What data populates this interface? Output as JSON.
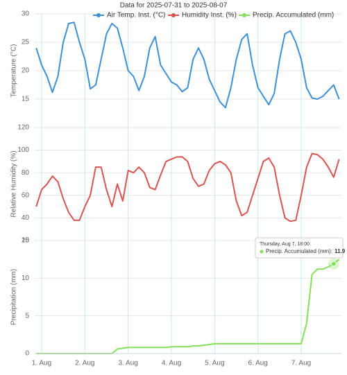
{
  "chart_data": [
    {
      "type": "line",
      "title": "Data for 2025-07-31 to 2025-08-07",
      "ylabel": "Temperature (°C)",
      "xlim": [
        0.84,
        7.93
      ],
      "xticks": [
        1,
        2,
        3,
        4,
        5,
        6,
        7
      ],
      "ylim": [
        10,
        30
      ],
      "yticks": [
        15,
        20,
        25,
        30
      ],
      "grid": true,
      "x": [
        0.875,
        1,
        1.125,
        1.25,
        1.375,
        1.5,
        1.625,
        1.75,
        1.875,
        2,
        2.125,
        2.25,
        2.375,
        2.5,
        2.625,
        2.75,
        2.875,
        3,
        3.125,
        3.25,
        3.375,
        3.5,
        3.625,
        3.75,
        3.875,
        4,
        4.125,
        4.25,
        4.375,
        4.5,
        4.625,
        4.75,
        4.875,
        5,
        5.125,
        5.25,
        5.375,
        5.5,
        5.625,
        5.75,
        5.875,
        6,
        6.125,
        6.25,
        6.375,
        6.5,
        6.625,
        6.75,
        6.875,
        7,
        7.125,
        7.25,
        7.375,
        7.5,
        7.625,
        7.75,
        7.875
      ],
      "series": [
        {
          "name": "Air Temp. Inst. (°C)",
          "color": "#3d8fd6",
          "values": [
            24,
            21,
            19,
            16.2,
            19,
            25,
            28.3,
            28.5,
            25,
            22,
            16.8,
            17.5,
            22,
            26.5,
            28.3,
            27.5,
            24,
            20,
            19,
            16.5,
            19,
            24,
            26,
            21,
            19.5,
            18,
            17.5,
            16.3,
            17,
            22,
            24,
            22,
            18.5,
            16.5,
            14.5,
            13.5,
            17,
            22,
            25.5,
            26.5,
            21,
            17,
            15.5,
            14,
            16,
            22,
            26.5,
            27,
            25,
            22,
            17,
            15.2,
            15,
            15.5,
            16.5,
            17.5,
            15
          ]
        }
      ]
    },
    {
      "type": "line",
      "ylabel": "Relative Humidity (%)",
      "xlim": [
        0.84,
        7.93
      ],
      "xticks": [
        1,
        2,
        3,
        4,
        5,
        6,
        7
      ],
      "ylim": [
        20,
        120
      ],
      "yticks": [
        20,
        40,
        60,
        80,
        100,
        120
      ],
      "grid": true,
      "x": [
        0.875,
        1,
        1.125,
        1.25,
        1.375,
        1.5,
        1.625,
        1.75,
        1.875,
        2,
        2.125,
        2.25,
        2.375,
        2.5,
        2.625,
        2.75,
        2.875,
        3,
        3.125,
        3.25,
        3.375,
        3.5,
        3.625,
        3.75,
        3.875,
        4,
        4.125,
        4.25,
        4.375,
        4.5,
        4.625,
        4.75,
        4.875,
        5,
        5.125,
        5.25,
        5.375,
        5.5,
        5.625,
        5.75,
        5.875,
        6,
        6.125,
        6.25,
        6.375,
        6.5,
        6.625,
        6.75,
        6.875,
        7,
        7.125,
        7.25,
        7.375,
        7.5,
        7.625,
        7.75,
        7.875
      ],
      "series": [
        {
          "name": "Humidity Inst. (%)",
          "color": "#d9534f",
          "values": [
            50,
            65,
            70,
            77,
            72,
            57,
            45,
            38,
            38,
            50,
            60,
            85,
            85,
            65,
            50,
            70,
            55,
            82,
            80,
            85,
            80,
            67,
            65,
            78,
            90,
            92,
            94,
            94,
            90,
            75,
            68,
            70,
            82,
            88,
            90,
            87,
            80,
            55,
            42,
            45,
            60,
            75,
            90,
            93,
            85,
            60,
            40,
            37,
            38,
            60,
            85,
            97,
            96,
            92,
            85,
            76,
            92
          ]
        }
      ]
    },
    {
      "type": "line",
      "ylabel": "Precipitation (mm)",
      "xlim": [
        0.84,
        7.93
      ],
      "xticks": [
        {
          "value": 1,
          "label": "1. Aug"
        },
        {
          "value": 2,
          "label": "2. Aug"
        },
        {
          "value": 3,
          "label": "3. Aug"
        },
        {
          "value": 4,
          "label": "4. Aug"
        },
        {
          "value": 5,
          "label": "5. Aug"
        },
        {
          "value": 6,
          "label": "6. Aug"
        },
        {
          "value": 7,
          "label": "7. Aug"
        }
      ],
      "ylim": [
        0,
        15
      ],
      "yticks": [
        0,
        5,
        10,
        15
      ],
      "grid": true,
      "x": [
        0.875,
        1,
        1.125,
        1.25,
        1.375,
        1.5,
        1.625,
        1.75,
        1.875,
        2,
        2.125,
        2.25,
        2.375,
        2.5,
        2.625,
        2.75,
        2.875,
        3,
        3.125,
        3.25,
        3.375,
        3.5,
        3.625,
        3.75,
        3.875,
        4,
        4.125,
        4.25,
        4.375,
        4.5,
        4.625,
        4.75,
        4.875,
        5,
        5.125,
        5.25,
        5.375,
        5.5,
        5.625,
        5.75,
        5.875,
        6,
        6.125,
        6.25,
        6.375,
        6.5,
        6.625,
        6.75,
        6.875,
        7,
        7.125,
        7.25,
        7.375,
        7.5,
        7.625,
        7.75,
        7.875
      ],
      "series": [
        {
          "name": "Precip. Accumulated (mm)",
          "color": "#84e05a",
          "values": [
            0,
            0,
            0,
            0,
            0,
            0,
            0,
            0,
            0,
            0,
            0,
            0,
            0,
            0,
            0,
            0.6,
            0.7,
            0.8,
            0.8,
            0.8,
            0.8,
            0.8,
            0.8,
            0.8,
            0.8,
            0.9,
            0.9,
            0.9,
            0.9,
            1.0,
            1.0,
            1.1,
            1.2,
            1.3,
            1.3,
            1.3,
            1.3,
            1.3,
            1.3,
            1.3,
            1.3,
            1.3,
            1.3,
            1.3,
            1.3,
            1.3,
            1.3,
            1.3,
            1.3,
            1.3,
            4,
            10.5,
            11.2,
            11.2,
            11.5,
            11.9,
            12.5
          ]
        }
      ],
      "tooltip": {
        "title": "Thursday, Aug 7, 18:00",
        "label": "Precip. Accumulated (mm):",
        "value": 11.9,
        "index": 55
      }
    }
  ]
}
